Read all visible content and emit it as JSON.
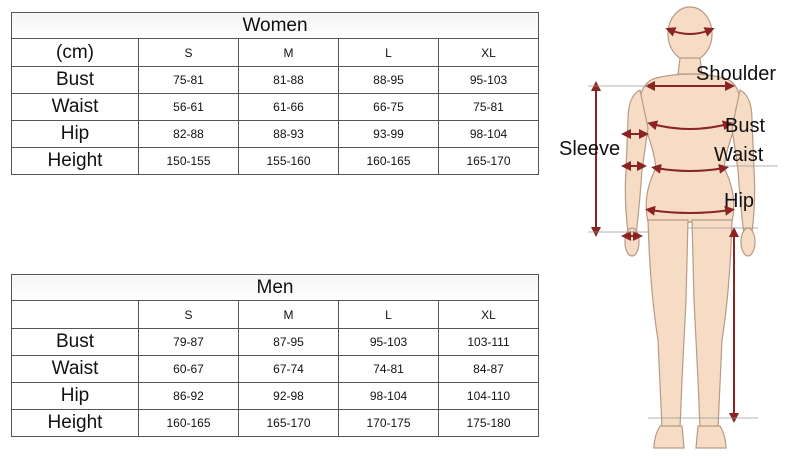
{
  "women": {
    "title": "Women",
    "unit_label": "(cm)",
    "sizes": [
      "S",
      "M",
      "L",
      "XL"
    ],
    "rows": [
      {
        "label": "Bust",
        "values": [
          "75-81",
          "81-88",
          "88-95",
          "95-103"
        ]
      },
      {
        "label": "Waist",
        "values": [
          "56-61",
          "61-66",
          "66-75",
          "75-81"
        ]
      },
      {
        "label": "Hip",
        "values": [
          "82-88",
          "88-93",
          "93-99",
          "98-104"
        ]
      },
      {
        "label": "Height",
        "values": [
          "150-155",
          "155-160",
          "160-165",
          "165-170"
        ]
      }
    ]
  },
  "men": {
    "title": "Men",
    "unit_label": "",
    "sizes": [
      "S",
      "M",
      "L",
      "XL"
    ],
    "rows": [
      {
        "label": "Bust",
        "values": [
          "79-87",
          "87-95",
          "95-103",
          "103-111"
        ]
      },
      {
        "label": "Waist",
        "values": [
          "60-67",
          "67-74",
          "74-81",
          "84-87"
        ]
      },
      {
        "label": "Hip",
        "values": [
          "86-92",
          "92-98",
          "98-104",
          "104-110"
        ]
      },
      {
        "label": "Height",
        "values": [
          "160-165",
          "165-170",
          "170-175",
          "175-180"
        ]
      }
    ]
  },
  "figure": {
    "labels": {
      "shoulder": "Shoulder",
      "bust": "Bust",
      "waist": "Waist",
      "sleeve": "Sleeve",
      "hip": "Hip"
    },
    "skin_color": "#f6dcc4",
    "outline_color": "#b89a86",
    "arrow_color": "#8b2323"
  }
}
